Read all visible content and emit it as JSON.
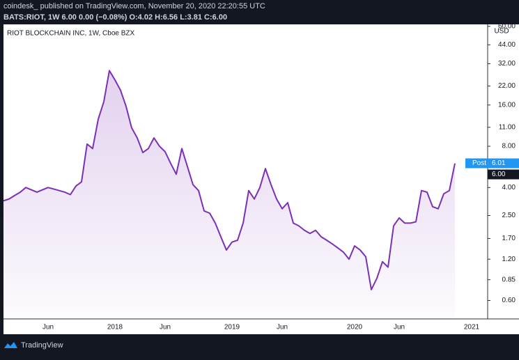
{
  "page": {
    "published": "coindesk_ published on TradingView.com, November 20, 2020 22:20:55 UTC",
    "symbol_line": "BATS:RIOT, 1W 6.00 0.00 (−0.08%) O:4.02 H:6.56 L:3.81 C:6.00",
    "brand": "TradingView"
  },
  "chart_data": {
    "type": "area",
    "title": "RIOT BLOCKCHAIN INC, 1W, Cboe BZX",
    "categories": [
      null,
      null,
      null,
      null,
      null,
      null,
      null,
      null,
      "Jun",
      null,
      null,
      null,
      null,
      null,
      null,
      null,
      null,
      null,
      null,
      null,
      "2018",
      null,
      null,
      null,
      null,
      null,
      null,
      null,
      null,
      "Jun",
      null,
      null,
      null,
      null,
      null,
      null,
      null,
      null,
      null,
      null,
      null,
      "2019",
      null,
      null,
      null,
      null,
      null,
      null,
      null,
      null,
      "Jun",
      null,
      null,
      null,
      null,
      null,
      null,
      null,
      null,
      null,
      null,
      null,
      null,
      "2020",
      null,
      null,
      null,
      null,
      null,
      null,
      null,
      "Jun",
      null,
      null,
      null,
      null,
      null,
      null,
      null,
      null,
      null,
      null,
      null,
      null,
      "2021"
    ],
    "values": [
      3.2,
      3.3,
      3.5,
      3.7,
      4.0,
      3.85,
      3.7,
      3.85,
      4.0,
      3.9,
      3.8,
      3.7,
      3.55,
      4.1,
      4.4,
      8.3,
      7.7,
      12.6,
      16.9,
      28.5,
      24.4,
      20.5,
      15.6,
      10.9,
      9.2,
      7.2,
      7.7,
      9.2,
      8.0,
      7.3,
      6.0,
      5.0,
      7.7,
      5.7,
      4.2,
      3.8,
      2.7,
      2.6,
      2.2,
      1.75,
      1.4,
      1.6,
      1.65,
      2.2,
      3.8,
      3.3,
      4.0,
      5.5,
      4.2,
      3.3,
      2.8,
      3.1,
      2.2,
      2.1,
      1.95,
      1.85,
      1.95,
      1.75,
      1.65,
      1.55,
      1.45,
      1.35,
      1.2,
      1.5,
      1.4,
      1.25,
      0.72,
      0.87,
      1.15,
      1.05,
      2.1,
      2.4,
      2.2,
      2.2,
      2.25,
      3.8,
      3.7,
      2.9,
      2.8,
      3.6,
      3.8,
      6.0,
      null,
      null,
      null
    ],
    "color": "#7b2fb5",
    "log_scale": true,
    "grid": false,
    "currency": "USD",
    "ylim": [
      0.44,
      62
    ],
    "yticks": [
      {
        "value": 0.6,
        "label": "0.60"
      },
      {
        "value": 0.85,
        "label": "0.85"
      },
      {
        "value": 1.2,
        "label": "1.20"
      },
      {
        "value": 1.7,
        "label": "1.70"
      },
      {
        "value": 2.5,
        "label": "2.50"
      },
      {
        "value": 4,
        "label": "4.00"
      },
      {
        "value": 8,
        "label": "8.00"
      },
      {
        "value": 11,
        "label": "11.00"
      },
      {
        "value": 16,
        "label": "16.00"
      },
      {
        "value": 22,
        "label": "22.00"
      },
      {
        "value": 32,
        "label": "32.00"
      },
      {
        "value": 44,
        "label": "44.00"
      },
      {
        "value": 60,
        "label": "60.00"
      }
    ],
    "post": {
      "name": "Post",
      "value": 6.01
    },
    "last": {
      "value": 6,
      "label": "6.00"
    }
  }
}
